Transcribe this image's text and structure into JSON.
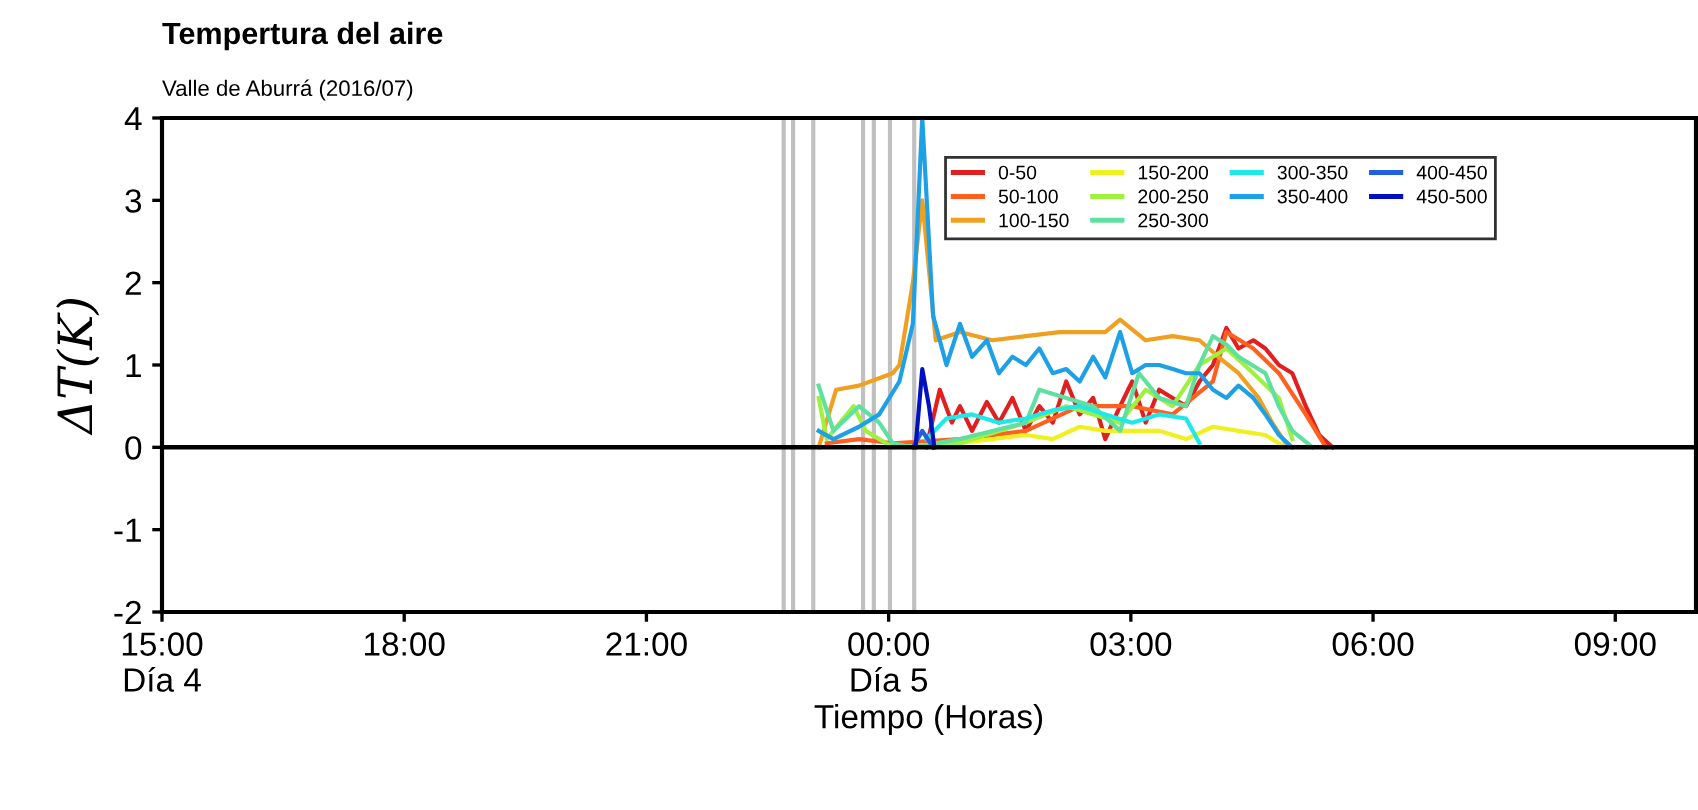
{
  "chart_data": {
    "type": "line",
    "title": "Tempertura del aire",
    "subtitle": "Valle de Aburrá (2016/07)",
    "xlabel": "Tiempo (Horas)",
    "ylabel": "ΔT(K)",
    "xlim": [
      "2016-07-04T15:00",
      "2016-07-05T10:00"
    ],
    "xticks": [
      {
        "value": "2016-07-04T15:00",
        "label": "15:00\nDía 4"
      },
      {
        "value": "2016-07-04T18:00",
        "label": "18:00"
      },
      {
        "value": "2016-07-04T21:00",
        "label": "21:00"
      },
      {
        "value": "2016-07-05T00:00",
        "label": "00:00\nDía 5"
      },
      {
        "value": "2016-07-05T03:00",
        "label": "03:00"
      },
      {
        "value": "2016-07-05T06:00",
        "label": "06:00"
      },
      {
        "value": "2016-07-05T09:00",
        "label": "09:00"
      }
    ],
    "ylim": [
      -2,
      4
    ],
    "yticks": [
      -2,
      -1,
      0,
      1,
      2,
      3,
      4
    ],
    "grid": false,
    "legend": "top",
    "marker": "none",
    "line_style": "solid",
    "ref_lines": [
      {
        "axis": "y",
        "value": 0,
        "color": "#000000"
      },
      {
        "axis": "x",
        "value": "2016-07-04T22:42",
        "color": "#c0c0c0"
      },
      {
        "axis": "x",
        "value": "2016-07-04T22:49",
        "color": "#c0c0c0"
      },
      {
        "axis": "x",
        "value": "2016-07-04T23:04",
        "color": "#c0c0c0"
      },
      {
        "axis": "x",
        "value": "2016-07-04T23:41",
        "color": "#c0c0c0"
      },
      {
        "axis": "x",
        "value": "2016-07-04T23:49",
        "color": "#c0c0c0"
      },
      {
        "axis": "x",
        "value": "2016-07-05T00:01",
        "color": "#c0c0c0"
      },
      {
        "axis": "x",
        "value": "2016-07-05T00:19",
        "color": "#c0c0c0"
      }
    ],
    "series": [
      {
        "name": "0-50",
        "color": "#e02020",
        "x": [
          "2016-07-05T00:28",
          "2016-07-05T00:38",
          "2016-07-05T00:47",
          "2016-07-05T00:53",
          "2016-07-05T01:02",
          "2016-07-05T01:13",
          "2016-07-05T01:22",
          "2016-07-05T01:32",
          "2016-07-05T01:42",
          "2016-07-05T01:52",
          "2016-07-05T02:02",
          "2016-07-05T02:12",
          "2016-07-05T02:22",
          "2016-07-05T02:32",
          "2016-07-05T02:41",
          "2016-07-05T02:52",
          "2016-07-05T03:01",
          "2016-07-05T03:11",
          "2016-07-05T03:21",
          "2016-07-05T03:31",
          "2016-07-05T03:41",
          "2016-07-05T03:51",
          "2016-07-05T04:01",
          "2016-07-05T04:11",
          "2016-07-05T04:20",
          "2016-07-05T04:31",
          "2016-07-05T04:40",
          "2016-07-05T04:50",
          "2016-07-05T05:00",
          "2016-07-05T05:10",
          "2016-07-05T05:20",
          "2016-07-05T05:30"
        ],
        "values": [
          0,
          0.7,
          0.3,
          0.5,
          0.2,
          0.55,
          0.3,
          0.6,
          0.2,
          0.5,
          0.3,
          0.8,
          0.4,
          0.6,
          0.1,
          0.5,
          0.8,
          0.3,
          0.7,
          0.6,
          0.5,
          0.8,
          1.0,
          1.45,
          1.2,
          1.3,
          1.2,
          1.0,
          0.9,
          0.5,
          0.15,
          0
        ]
      },
      {
        "name": "50-100",
        "color": "#ff6020",
        "x": [
          "2016-07-04T23:14",
          "2016-07-04T23:38",
          "2016-07-05T00:03",
          "2016-07-05T00:53",
          "2016-07-05T01:42",
          "2016-07-05T02:22",
          "2016-07-05T03:01",
          "2016-07-05T03:31",
          "2016-07-05T04:01",
          "2016-07-05T04:11",
          "2016-07-05T04:31",
          "2016-07-05T04:50",
          "2016-07-05T05:10",
          "2016-07-05T05:25"
        ],
        "values": [
          0.05,
          0.1,
          0.05,
          0.1,
          0.2,
          0.5,
          0.5,
          0.4,
          0.8,
          1.4,
          1.2,
          0.9,
          0.4,
          0
        ]
      },
      {
        "name": "100-150",
        "color": "#f0a020",
        "x": [
          "2016-07-04T23:08",
          "2016-07-04T23:21",
          "2016-07-04T23:38",
          "2016-07-05T00:03",
          "2016-07-05T00:08",
          "2016-07-05T00:18",
          "2016-07-05T00:25",
          "2016-07-05T00:35",
          "2016-07-05T00:53",
          "2016-07-05T01:17",
          "2016-07-05T01:42",
          "2016-07-05T02:07",
          "2016-07-05T02:41",
          "2016-07-05T02:52",
          "2016-07-05T03:11",
          "2016-07-05T03:31",
          "2016-07-05T03:51",
          "2016-07-05T04:05",
          "2016-07-05T04:20",
          "2016-07-05T04:35",
          "2016-07-05T04:45",
          "2016-07-05T04:55"
        ],
        "values": [
          0,
          0.7,
          0.75,
          0.9,
          1.0,
          2.0,
          3.0,
          1.3,
          1.4,
          1.3,
          1.35,
          1.4,
          1.4,
          1.55,
          1.3,
          1.35,
          1.3,
          1.1,
          0.9,
          0.6,
          0.3,
          0.05
        ]
      },
      {
        "name": "150-200",
        "color": "#f0f020",
        "x": [
          "2016-07-05T00:33",
          "2016-07-05T00:53",
          "2016-07-05T01:42",
          "2016-07-05T02:02",
          "2016-07-05T02:22",
          "2016-07-05T02:41",
          "2016-07-05T03:01",
          "2016-07-05T03:21",
          "2016-07-05T03:41",
          "2016-07-05T04:01",
          "2016-07-05T04:20",
          "2016-07-05T04:40",
          "2016-07-05T04:55"
        ],
        "values": [
          0,
          0.05,
          0.15,
          0.1,
          0.25,
          0.2,
          0.2,
          0.2,
          0.1,
          0.25,
          0.2,
          0.15,
          0
        ]
      },
      {
        "name": "200-250",
        "color": "#a0f040",
        "x": [
          "2016-07-04T23:08",
          "2016-07-04T23:14",
          "2016-07-04T23:34",
          "2016-07-04T23:43",
          "2016-07-05T00:03",
          "2016-07-05T00:53",
          "2016-07-05T01:42",
          "2016-07-05T02:12",
          "2016-07-05T02:52",
          "2016-07-05T03:11",
          "2016-07-05T03:31",
          "2016-07-05T03:51",
          "2016-07-05T04:11",
          "2016-07-05T04:31",
          "2016-07-05T04:50",
          "2016-07-05T05:00"
        ],
        "values": [
          0.6,
          0.1,
          0.5,
          0.2,
          0,
          0.05,
          0.3,
          0.5,
          0.3,
          0.7,
          0.5,
          1.0,
          1.2,
          0.9,
          0.6,
          0.1
        ]
      },
      {
        "name": "250-300",
        "color": "#60e0a0",
        "x": [
          "2016-07-04T23:08",
          "2016-07-04T23:19",
          "2016-07-04T23:38",
          "2016-07-04T23:53",
          "2016-07-05T00:03",
          "2016-07-05T00:18",
          "2016-07-05T00:53",
          "2016-07-05T01:42",
          "2016-07-05T01:52",
          "2016-07-05T02:12",
          "2016-07-05T02:32",
          "2016-07-05T02:52",
          "2016-07-05T03:06",
          "2016-07-05T03:21",
          "2016-07-05T03:41",
          "2016-07-05T03:51",
          "2016-07-05T04:01",
          "2016-07-05T04:11",
          "2016-07-05T04:20",
          "2016-07-05T04:40",
          "2016-07-05T04:50",
          "2016-07-05T05:00",
          "2016-07-05T05:15"
        ],
        "values": [
          0.75,
          0.2,
          0.5,
          0.3,
          0.05,
          0,
          0.1,
          0.3,
          0.7,
          0.6,
          0.5,
          0.2,
          0.9,
          0.6,
          0.5,
          1.0,
          1.35,
          1.25,
          1.1,
          0.9,
          0.5,
          0.2,
          0
        ]
      },
      {
        "name": "300-350",
        "color": "#20e8e8",
        "x": [
          "2016-07-05T00:28",
          "2016-07-05T00:43",
          "2016-07-05T01:02",
          "2016-07-05T01:22",
          "2016-07-05T01:42",
          "2016-07-05T02:02",
          "2016-07-05T02:22",
          "2016-07-05T02:41",
          "2016-07-05T03:01",
          "2016-07-05T03:21",
          "2016-07-05T03:41",
          "2016-07-05T03:51"
        ],
        "values": [
          0.1,
          0.35,
          0.4,
          0.3,
          0.35,
          0.45,
          0.5,
          0.4,
          0.3,
          0.4,
          0.35,
          0.05
        ]
      },
      {
        "name": "350-400",
        "color": "#1ea0e6",
        "x": [
          "2016-07-04T23:08",
          "2016-07-04T23:19",
          "2016-07-04T23:38",
          "2016-07-04T23:53",
          "2016-07-05T00:08",
          "2016-07-05T00:18",
          "2016-07-05T00:25",
          "2016-07-05T00:33",
          "2016-07-05T00:43",
          "2016-07-05T00:53",
          "2016-07-05T01:02",
          "2016-07-05T01:13",
          "2016-07-05T01:22",
          "2016-07-05T01:32",
          "2016-07-05T01:42",
          "2016-07-05T01:52",
          "2016-07-05T02:02",
          "2016-07-05T02:12",
          "2016-07-05T02:22",
          "2016-07-05T02:32",
          "2016-07-05T02:41",
          "2016-07-05T02:52",
          "2016-07-05T03:01",
          "2016-07-05T03:11",
          "2016-07-05T03:21",
          "2016-07-05T03:31",
          "2016-07-05T03:41",
          "2016-07-05T03:51",
          "2016-07-05T04:01",
          "2016-07-05T04:11",
          "2016-07-05T04:20",
          "2016-07-05T04:31",
          "2016-07-05T04:40",
          "2016-07-05T04:50",
          "2016-07-05T05:00"
        ],
        "values": [
          0.2,
          0.1,
          0.25,
          0.4,
          0.8,
          1.5,
          4.0,
          1.6,
          1.0,
          1.5,
          1.1,
          1.3,
          0.9,
          1.1,
          1.0,
          1.2,
          0.9,
          0.95,
          0.8,
          1.1,
          0.85,
          1.4,
          0.9,
          1.0,
          1.0,
          0.95,
          0.9,
          0.9,
          0.7,
          0.6,
          0.75,
          0.6,
          0.4,
          0.15,
          0
        ]
      },
      {
        "name": "400-450",
        "color": "#2060e0",
        "x": [
          "2016-07-05T00:18",
          "2016-07-05T00:25",
          "2016-07-05T00:33"
        ],
        "values": [
          0,
          0.2,
          0
        ]
      },
      {
        "name": "450-500",
        "color": "#0010c0",
        "x": [
          "2016-07-05T00:20",
          "2016-07-05T00:25",
          "2016-07-05T00:30",
          "2016-07-05T00:34"
        ],
        "values": [
          0,
          0.95,
          0.5,
          0
        ]
      }
    ]
  }
}
